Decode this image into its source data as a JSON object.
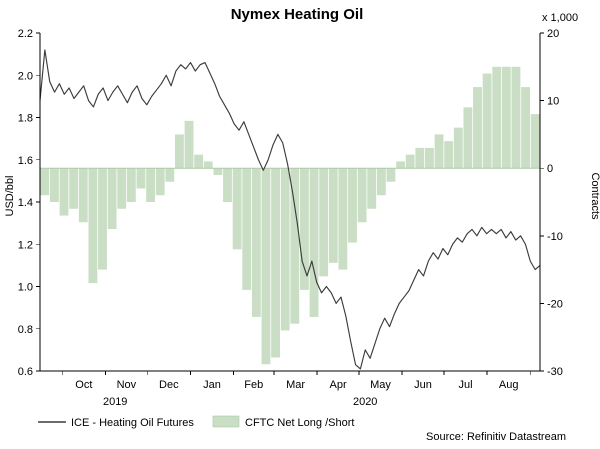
{
  "title": "Nymex Heating Oil",
  "source": "Source: Refinitiv Datastream",
  "legend": {
    "line": "ICE - Heating Oil Futures",
    "area": "CFTC Net Long /Short"
  },
  "left_axis": {
    "label": "USD/bbl",
    "min": 0.6,
    "max": 2.2,
    "ticks": [
      "2.2",
      "2.0",
      "1.8",
      "1.6",
      "1.4",
      "1.2",
      "1.0",
      "0.8",
      "0.6"
    ]
  },
  "right_axis": {
    "label": "Contracts",
    "unit": "x 1,000",
    "min": -30,
    "max": 20,
    "ticks": [
      "20",
      "10",
      "0",
      "-10",
      "-20",
      "-30"
    ]
  },
  "x_axis": {
    "months": [
      "Oct",
      "Nov",
      "Dec",
      "Jan",
      "Feb",
      "Mar",
      "Apr",
      "May",
      "Jun",
      "Jul",
      "Aug"
    ],
    "years": [
      "2019",
      "2020"
    ]
  },
  "colors": {
    "line": "#3c3c3c",
    "bar_fill": "#c9dec4",
    "bar_stroke": "#aecba6",
    "axis": "#000000",
    "text": "#000000"
  },
  "chart_data": {
    "type": "line+bar",
    "title": "Nymex Heating Oil",
    "left_ylim": [
      0.6,
      2.2
    ],
    "right_ylim": [
      -30,
      20
    ],
    "series": [
      {
        "name": "ICE - Heating Oil Futures",
        "type": "line",
        "axis": "left",
        "unit": "USD/bbl",
        "values": [
          1.88,
          2.12,
          1.97,
          1.92,
          1.96,
          1.91,
          1.94,
          1.89,
          1.92,
          1.95,
          1.88,
          1.85,
          1.91,
          1.94,
          1.88,
          1.92,
          1.95,
          1.91,
          1.87,
          1.92,
          1.95,
          1.89,
          1.86,
          1.9,
          1.93,
          1.96,
          2.0,
          1.95,
          2.02,
          2.05,
          2.03,
          2.06,
          2.02,
          2.05,
          2.06,
          2.01,
          1.96,
          1.9,
          1.86,
          1.82,
          1.77,
          1.74,
          1.78,
          1.72,
          1.66,
          1.6,
          1.55,
          1.6,
          1.67,
          1.72,
          1.68,
          1.58,
          1.45,
          1.3,
          1.12,
          1.05,
          1.12,
          1.02,
          0.97,
          1.0,
          0.97,
          0.92,
          0.95,
          0.86,
          0.74,
          0.63,
          0.61,
          0.7,
          0.66,
          0.73,
          0.8,
          0.85,
          0.81,
          0.87,
          0.92,
          0.95,
          0.98,
          1.03,
          1.08,
          1.05,
          1.12,
          1.16,
          1.13,
          1.18,
          1.15,
          1.2,
          1.23,
          1.21,
          1.25,
          1.27,
          1.24,
          1.28,
          1.25,
          1.27,
          1.25,
          1.27,
          1.23,
          1.26,
          1.22,
          1.24,
          1.2,
          1.12,
          1.08,
          1.1
        ]
      },
      {
        "name": "CFTC Net Long /Short",
        "type": "bar",
        "axis": "right",
        "unit": "x 1,000 contracts",
        "values": [
          -4,
          -5,
          -7,
          -6,
          -8,
          -17,
          -15,
          -9,
          -6,
          -5,
          -3,
          -5,
          -4,
          -2,
          5,
          7,
          2,
          1,
          -1,
          -5,
          -12,
          -18,
          -22,
          -29,
          -28,
          -24,
          -23,
          -18,
          -22,
          -16,
          -14,
          -15,
          -11,
          -8,
          -6,
          -4,
          -2,
          1,
          2,
          3,
          3,
          5,
          4,
          6,
          9,
          12,
          14,
          15,
          15,
          15,
          12,
          8
        ]
      }
    ]
  }
}
